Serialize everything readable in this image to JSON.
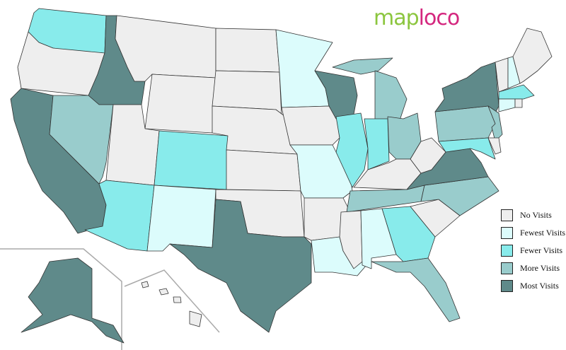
{
  "logo": {
    "part1": "map",
    "part2": "loco"
  },
  "legend": [
    {
      "label": "No Visits",
      "color": "#eeeeee",
      "key": "none"
    },
    {
      "label": "Fewest Visits",
      "color": "#dcfcfc",
      "key": "fewest"
    },
    {
      "label": "Fewer Visits",
      "color": "#88ebeb",
      "key": "fewer"
    },
    {
      "label": "More Visits",
      "color": "#99cccc",
      "key": "more"
    },
    {
      "label": "Most Visits",
      "color": "#5f8a8a",
      "key": "most"
    }
  ],
  "regions": {
    "WA": "fewer",
    "OR": "none",
    "CA": "most",
    "ID": "most",
    "NV": "more",
    "MT": "none",
    "WY": "none",
    "UT": "none",
    "CO": "fewer",
    "AZ": "fewer",
    "NM": "fewest",
    "ND": "none",
    "SD": "none",
    "NE": "none",
    "KS": "none",
    "OK": "none",
    "TX": "most",
    "MN": "fewest",
    "IA": "none",
    "MO": "fewest",
    "AR": "none",
    "LA": "fewest",
    "WI": "most",
    "IL": "fewer",
    "MI_UP": "more",
    "MI": "more",
    "IN": "fewer",
    "OH": "more",
    "KY": "none",
    "TN": "more",
    "MS": "none",
    "AL": "fewest",
    "GA": "fewer",
    "FL": "more",
    "SC": "none",
    "NC": "more",
    "VA": "most",
    "WV": "none",
    "PA": "more",
    "NY": "most",
    "NJ": "more",
    "MD": "fewer",
    "DE": "none",
    "VT": "none",
    "NH": "fewest",
    "ME": "none",
    "MA": "fewer",
    "CT": "fewest",
    "RI": "none",
    "AK": "most",
    "HI1": "none",
    "HI2": "none",
    "HI3": "none",
    "HI4": "none"
  }
}
